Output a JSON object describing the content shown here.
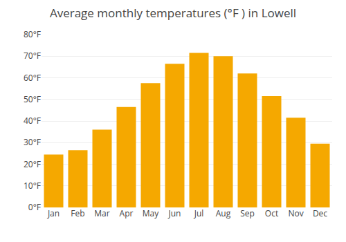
{
  "chart_data": {
    "type": "bar",
    "title": "Average monthly temperatures (°F ) in Lowell",
    "categories": [
      "Jan",
      "Feb",
      "Mar",
      "Apr",
      "May",
      "Jun",
      "Jul",
      "Aug",
      "Sep",
      "Oct",
      "Nov",
      "Dec"
    ],
    "values": [
      24.5,
      26.5,
      36.0,
      46.5,
      57.5,
      66.5,
      71.5,
      70.0,
      62.0,
      51.5,
      41.5,
      29.5
    ],
    "color": "#F5A800",
    "ylim": [
      0,
      80
    ],
    "yticks": [
      {
        "value": 0,
        "label": "0°F"
      },
      {
        "value": 10,
        "label": "10°F"
      },
      {
        "value": 20,
        "label": "20°F"
      },
      {
        "value": 30,
        "label": "30°F"
      },
      {
        "value": 40,
        "label": "40°F"
      },
      {
        "value": 50,
        "label": "50°F"
      },
      {
        "value": 60,
        "label": "60°F"
      },
      {
        "value": 70,
        "label": "70°F"
      },
      {
        "value": 80,
        "label": "80°F"
      }
    ],
    "grid": true
  }
}
